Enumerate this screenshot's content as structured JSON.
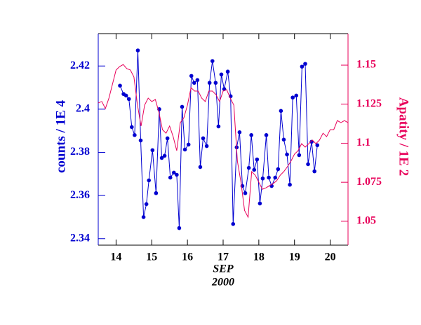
{
  "chart_data": {
    "type": "line",
    "y_label": "counts / 1E 4",
    "y2_label": "Apatity / 1E 2",
    "x_label": "SEP",
    "x_sublabel": "2000",
    "xlim": [
      13.5,
      20.5
    ],
    "xticks": [
      14,
      15,
      16,
      17,
      18,
      19,
      20
    ],
    "ylim": [
      2.337,
      2.435
    ],
    "yticks": [
      2.34,
      2.36,
      2.38,
      2.4,
      2.42
    ],
    "y2lim": [
      1.0347,
      1.1702
    ],
    "y2ticks": [
      1.05,
      1.075,
      1.1,
      1.125,
      1.15
    ],
    "series": [
      {
        "name": "counts",
        "color": "#0000d0",
        "markers": true,
        "x": [
          14.11,
          14.21,
          14.28,
          14.36,
          14.44,
          14.52,
          14.61,
          14.69,
          14.77,
          14.85,
          14.92,
          15.02,
          15.12,
          15.21,
          15.28,
          15.36,
          15.44,
          15.52,
          15.62,
          15.7,
          15.77,
          15.85,
          15.93,
          16.03,
          16.11,
          16.19,
          16.28,
          16.36,
          16.44,
          16.54,
          16.62,
          16.7,
          16.79,
          16.87,
          16.95,
          17.03,
          17.13,
          17.21,
          17.28,
          17.38,
          17.46,
          17.54,
          17.62,
          17.72,
          17.79,
          17.87,
          17.95,
          18.03,
          18.11,
          18.21,
          18.28,
          18.36,
          18.46,
          18.54,
          18.62,
          18.7,
          18.79,
          18.87,
          18.95,
          19.05,
          19.13,
          19.21,
          19.3,
          19.38,
          19.48,
          19.56,
          19.64
        ],
        "values": [
          2.4109,
          2.407,
          2.4063,
          2.4047,
          2.3917,
          2.388,
          2.4272,
          2.3855,
          2.35,
          2.356,
          2.367,
          2.381,
          2.3611,
          2.4,
          2.3774,
          2.3784,
          2.3865,
          2.3683,
          2.3706,
          2.3696,
          2.3449,
          2.4011,
          2.3813,
          2.3836,
          2.4154,
          2.4122,
          2.4135,
          2.3732,
          2.3865,
          2.3829,
          2.4122,
          2.4223,
          2.4122,
          2.392,
          2.4161,
          2.4093,
          2.4174,
          2.406,
          2.3468,
          2.3823,
          2.3893,
          2.3644,
          2.3611,
          2.3728,
          2.388,
          2.3719,
          2.3767,
          2.3563,
          2.3679,
          2.388,
          2.3683,
          2.3644,
          2.3683,
          2.3722,
          2.3992,
          2.3859,
          2.379,
          2.365,
          2.4054,
          2.4063,
          2.3787,
          2.4197,
          2.421,
          2.3745,
          2.3849,
          2.3712,
          2.3833
        ]
      },
      {
        "name": "Apatity",
        "color": "#e8005a",
        "axis": "y2",
        "markers": false,
        "x": [
          13.5,
          13.6,
          13.7,
          13.8,
          13.9,
          14.0,
          14.1,
          14.2,
          14.3,
          14.4,
          14.5,
          14.6,
          14.7,
          14.8,
          14.9,
          15.0,
          15.1,
          15.2,
          15.3,
          15.4,
          15.5,
          15.6,
          15.7,
          15.8,
          15.9,
          16.0,
          16.1,
          16.2,
          16.3,
          16.4,
          16.5,
          16.6,
          16.7,
          16.8,
          16.9,
          17.0,
          17.1,
          17.2,
          17.3,
          17.4,
          17.5,
          17.6,
          17.7,
          17.8,
          17.9,
          18.0,
          18.1,
          18.2,
          18.3,
          18.4,
          18.5,
          18.6,
          18.7,
          18.8,
          18.9,
          19.0,
          19.1,
          19.2,
          19.3,
          19.4,
          19.5,
          19.6,
          19.7,
          19.8,
          19.9,
          20.0,
          20.1,
          20.2,
          20.3,
          20.4,
          20.5
        ],
        "values": [
          1.1258,
          1.1267,
          1.1222,
          1.1289,
          1.1379,
          1.1469,
          1.1491,
          1.1504,
          1.1478,
          1.1469,
          1.1424,
          1.1244,
          1.111,
          1.1244,
          1.1289,
          1.1267,
          1.128,
          1.1199,
          1.1087,
          1.1064,
          1.111,
          1.1042,
          1.0952,
          1.1132,
          1.1163,
          1.1244,
          1.1356,
          1.1334,
          1.1334,
          1.1289,
          1.1267,
          1.1334,
          1.1334,
          1.1311,
          1.1267,
          1.1334,
          1.1343,
          1.1289,
          1.1244,
          1.0885,
          1.075,
          1.057,
          1.0526,
          1.0818,
          1.0795,
          1.075,
          1.0705,
          1.0714,
          1.0728,
          1.0741,
          1.0759,
          1.0795,
          1.0818,
          1.0849,
          1.0885,
          1.093,
          1.0952,
          1.0997,
          1.0975,
          1.0997,
          1.102,
          1.0997,
          1.102,
          1.1064,
          1.1042,
          1.1087,
          1.1087,
          1.1145,
          1.1132,
          1.1145,
          1.1132
        ]
      }
    ]
  }
}
